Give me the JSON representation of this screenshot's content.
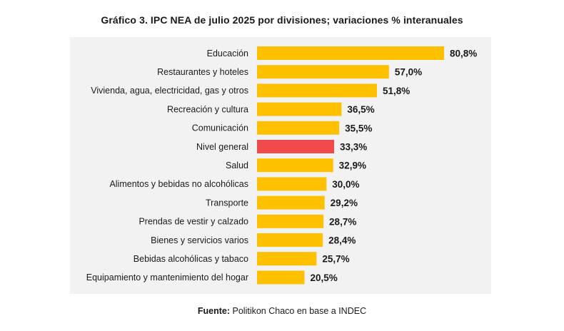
{
  "chart_data": {
    "type": "bar",
    "orientation": "horizontal",
    "title": "Gráfico 3. IPC NEA de julio 2025 por divisiones; variaciones % interanuales",
    "categories": [
      "Educación",
      "Restaurantes y hoteles",
      "Vivienda, agua, electricidad, gas y otros",
      "Recreación y cultura",
      "Comunicación",
      "Nivel general",
      "Salud",
      "Alimentos y bebidas no alcohólicas",
      "Transporte",
      "Prendas de vestir y calzado",
      "Bienes y servicios varios",
      "Bebidas alcohólicas y tabaco",
      "Equipamiento y mantenimiento del hogar"
    ],
    "values": [
      80.8,
      57.0,
      51.8,
      36.5,
      35.5,
      33.3,
      32.9,
      30.0,
      29.2,
      28.7,
      28.4,
      25.7,
      20.5
    ],
    "value_labels": [
      "80,8%",
      "57,0%",
      "51,8%",
      "36,5%",
      "35,5%",
      "33,3%",
      "32,9%",
      "30,0%",
      "29,2%",
      "28,7%",
      "28,4%",
      "25,7%",
      "20,5%"
    ],
    "highlight_category": "Nivel general",
    "colors": {
      "bar": "#FFC000",
      "highlight": "#F04A4A"
    },
    "xlim": [
      0,
      80.8
    ],
    "grid": false,
    "legend": "none"
  },
  "footer": {
    "source_label": "Fuente:",
    "source_text": "Politikon Chaco en base a INDEC"
  }
}
